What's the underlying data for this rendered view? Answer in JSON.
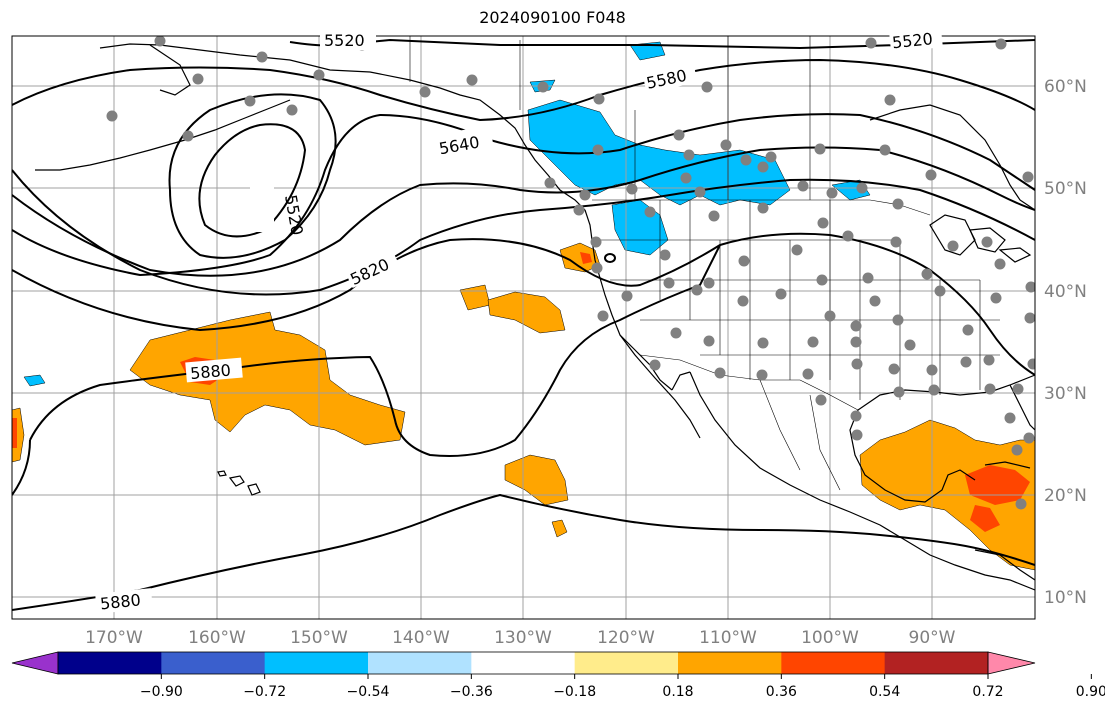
{
  "title": "2024090100 F048",
  "map": {
    "lon_ticks": [
      "170°W",
      "160°W",
      "150°W",
      "140°W",
      "130°W",
      "120°W",
      "110°W",
      "100°W",
      "90°W"
    ],
    "lat_ticks": [
      "60°N",
      "50°N",
      "40°N",
      "30°N",
      "20°N",
      "10°N"
    ],
    "contour_labels": [
      "5520",
      "5580",
      "5520",
      "5640",
      "5520",
      "5820",
      "5880",
      "5880"
    ]
  },
  "colorbar": {
    "tick_labels": [
      "−0.90",
      "−0.72",
      "−0.54",
      "−0.36",
      "−0.18",
      "0.18",
      "0.36",
      "0.54",
      "0.72",
      "0.90"
    ],
    "colors": [
      "#9932cc",
      "#00008b",
      "#3a5fcd",
      "#00bfff",
      "#b0e2ff",
      "#ffffff",
      "#ffec8b",
      "#ffa500",
      "#ff4500",
      "#b22222",
      "#ff88aa"
    ]
  }
}
